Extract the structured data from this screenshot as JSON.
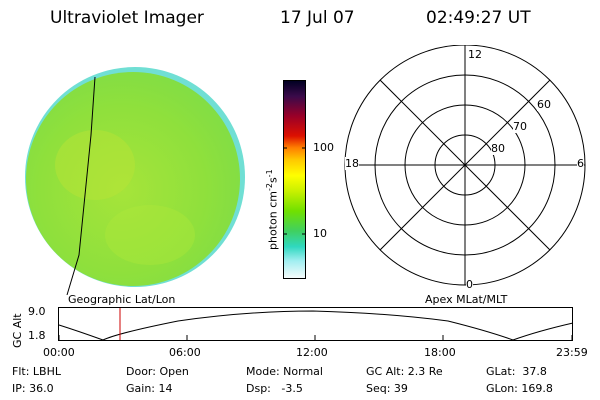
{
  "header": {
    "title": "Ultraviolet Imager",
    "date": "17 Jul 07",
    "time": "02:49:27 UT"
  },
  "colors": {
    "disk_fill": "#8fe13a",
    "disk_rim": "#6ee0d2",
    "trace_line": "#000000",
    "marker_line": "#cc0000"
  },
  "colorbar": {
    "unit": "photon cm",
    "unit_exp1": "-2",
    "unit_mid": "s",
    "unit_exp2": "-1",
    "tick_100": "100",
    "tick_10": "10",
    "stops": [
      "#000033",
      "#3a0a4a",
      "#8b0030",
      "#d40000",
      "#ff6a00",
      "#ffc000",
      "#ffff00",
      "#d4f000",
      "#7fe000",
      "#40d040",
      "#30d0a0",
      "#60e8e8",
      "#c0f4f4",
      "#f4fbfb"
    ]
  },
  "images": {
    "left_caption": "Geographic Lat/Lon",
    "right_caption": "Apex MLat/MLT"
  },
  "polar": {
    "mlt_top": "12",
    "mlt_left": "18",
    "mlt_right": "6",
    "mlt_bottom": "0",
    "lat_60": "60",
    "lat_70": "70",
    "lat_80": "80"
  },
  "timeline": {
    "ylabel": "GC Alt",
    "ytick_top": "9.0",
    "ytick_bottom": "1.8",
    "xticks": [
      "00:00",
      "06:00",
      "12:00",
      "18:00",
      "23:59"
    ],
    "marker_time": "02:49"
  },
  "footer": {
    "flt": "Flt: LBHL",
    "ip": "IP: 36.0",
    "door": "Door: Open",
    "gain": "Gain: 14",
    "mode": "Mode: Normal",
    "dsp": "Dsp:   -3.5",
    "gcalt": "GC Alt: 2.3 Re",
    "seq": "Seq: 39",
    "glat": "GLat:  37.8",
    "glon": "GLon: 169.8"
  }
}
